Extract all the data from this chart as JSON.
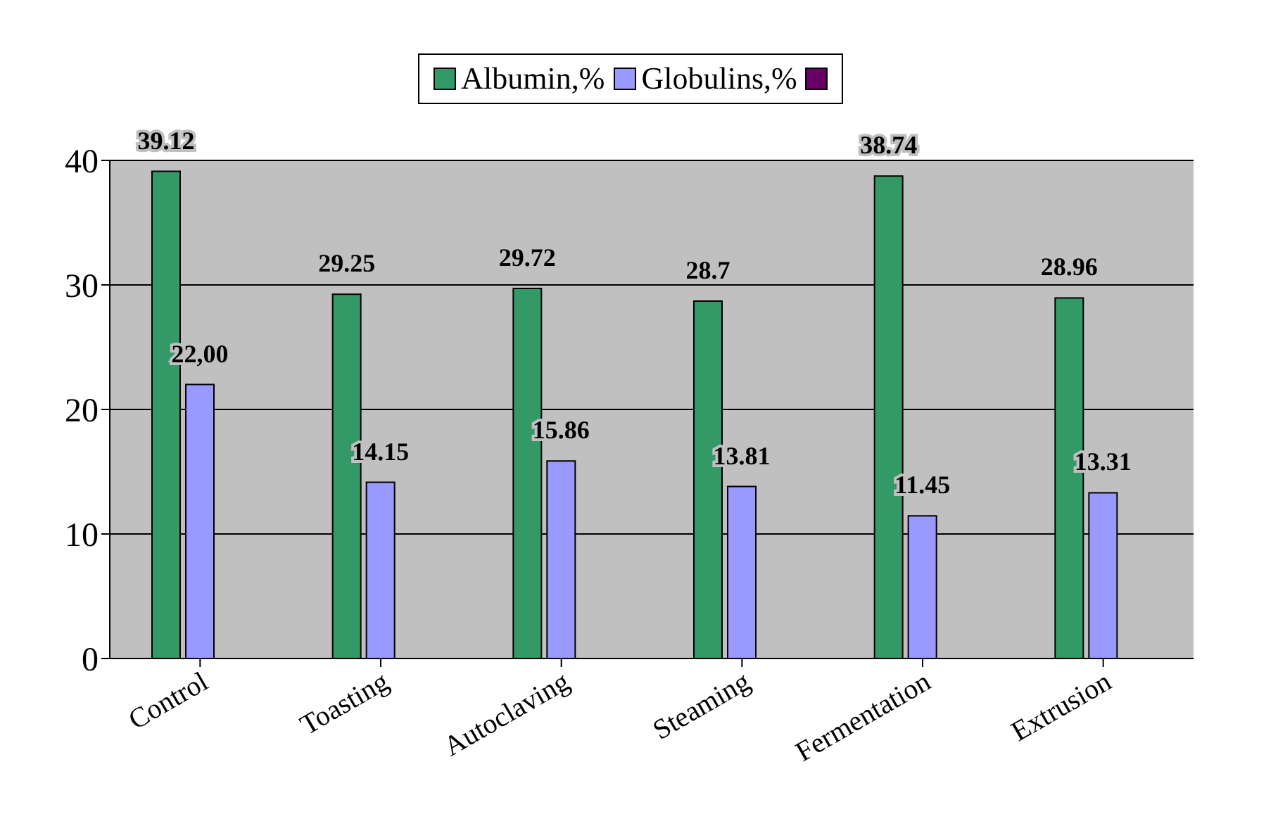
{
  "chart_data": {
    "type": "bar",
    "categories": [
      "Control",
      "Toasting",
      "Autoclaving",
      "Steaming",
      "Fermentation",
      "Extrusion"
    ],
    "series": [
      {
        "name": "Albumin,%",
        "color": "#339966",
        "values": [
          39.12,
          29.25,
          29.72,
          28.7,
          38.74,
          28.96
        ],
        "value_labels": [
          "39.12",
          "29.25",
          "29.72",
          "28.7",
          "38.74",
          "28.96"
        ]
      },
      {
        "name": "Globulins,%",
        "color": "#9999ff",
        "values": [
          22.0,
          14.15,
          15.86,
          13.81,
          11.45,
          13.31
        ],
        "value_labels": [
          "22,00",
          "14.15",
          "15.86",
          "13.81",
          "11.45",
          "13.31"
        ]
      },
      {
        "color": "#660066",
        "values": [
          null,
          null,
          null,
          null,
          null,
          null
        ]
      }
    ],
    "ylim": [
      0,
      40
    ],
    "yticks": [
      0,
      10,
      20,
      30,
      40
    ],
    "grid": "y",
    "legend": "top"
  }
}
